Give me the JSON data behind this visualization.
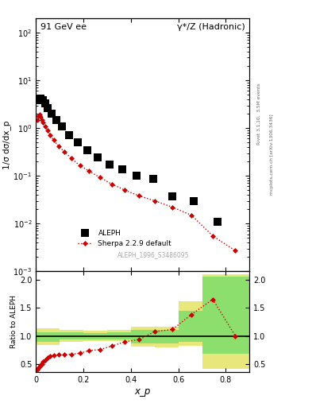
{
  "title_left": "91 GeV ee",
  "title_right": "γ*/Z (Hadronic)",
  "ylabel_main": "1/σ dσ/dx_p",
  "ylabel_ratio": "Ratio to ALEPH",
  "xlabel": "x_p",
  "watermark": "ALEPH_1996_S3486095",
  "right_label": "Rivet 3.1.10,  3.5M events",
  "right_label2": "mcplots.cern.ch [arXiv:1306.3436]",
  "aleph_x": [
    0.012,
    0.02,
    0.028,
    0.038,
    0.05,
    0.065,
    0.085,
    0.11,
    0.14,
    0.175,
    0.215,
    0.26,
    0.31,
    0.365,
    0.425,
    0.495,
    0.575,
    0.665,
    0.765
  ],
  "aleph_y": [
    3.8,
    4.2,
    3.9,
    3.3,
    2.6,
    2.0,
    1.5,
    1.1,
    0.72,
    0.5,
    0.35,
    0.24,
    0.17,
    0.135,
    0.1,
    0.085,
    0.037,
    0.03,
    0.011
  ],
  "aleph_color": "#000000",
  "aleph_marker": "s",
  "aleph_markersize": 5,
  "aleph_label": "ALEPH",
  "sherpa_x": [
    0.005,
    0.01,
    0.015,
    0.02,
    0.025,
    0.03,
    0.038,
    0.048,
    0.06,
    0.075,
    0.095,
    0.12,
    0.15,
    0.185,
    0.225,
    0.27,
    0.32,
    0.375,
    0.435,
    0.5,
    0.575,
    0.655,
    0.745,
    0.84
  ],
  "sherpa_y": [
    1.5,
    1.8,
    1.9,
    1.7,
    1.5,
    1.3,
    1.1,
    0.9,
    0.72,
    0.56,
    0.42,
    0.32,
    0.23,
    0.165,
    0.125,
    0.092,
    0.067,
    0.05,
    0.038,
    0.03,
    0.022,
    0.015,
    0.0055,
    0.0027
  ],
  "sherpa_color": "#cc0000",
  "sherpa_marker": "D",
  "sherpa_markersize": 3.5,
  "sherpa_label": "Sherpa 2.2.9 default",
  "ratio_x": [
    0.005,
    0.01,
    0.015,
    0.02,
    0.025,
    0.03,
    0.038,
    0.048,
    0.06,
    0.075,
    0.095,
    0.12,
    0.15,
    0.185,
    0.225,
    0.27,
    0.32,
    0.375,
    0.435,
    0.5,
    0.575,
    0.655,
    0.745,
    0.84
  ],
  "ratio_y": [
    0.395,
    0.43,
    0.46,
    0.48,
    0.5,
    0.535,
    0.57,
    0.615,
    0.635,
    0.655,
    0.665,
    0.67,
    0.675,
    0.69,
    0.74,
    0.755,
    0.82,
    0.895,
    0.935,
    1.075,
    1.115,
    1.38,
    1.65,
    1.0
  ],
  "band_edges": [
    0.0,
    0.1,
    0.2,
    0.3,
    0.4,
    0.5,
    0.6,
    0.7,
    0.9
  ],
  "band_green_low": [
    0.9,
    0.93,
    0.94,
    0.94,
    0.87,
    0.87,
    0.9,
    0.68,
    0.68
  ],
  "band_green_high": [
    1.07,
    1.06,
    1.055,
    1.06,
    1.1,
    1.1,
    1.45,
    2.05,
    2.05
  ],
  "band_yellow_low": [
    0.84,
    0.89,
    0.91,
    0.91,
    0.81,
    0.79,
    0.83,
    0.42,
    0.42
  ],
  "band_yellow_high": [
    1.13,
    1.11,
    1.09,
    1.11,
    1.17,
    1.17,
    1.62,
    2.1,
    2.1
  ],
  "ylim_main": [
    0.001,
    200
  ],
  "ylim_ratio": [
    0.35,
    2.15
  ],
  "xlim": [
    0.0,
    0.9
  ],
  "ratio_yticks": [
    0.5,
    1.0,
    1.5,
    2.0
  ],
  "green_color": "#66dd66",
  "yellow_color": "#dddd44",
  "green_alpha": 0.7,
  "yellow_alpha": 0.7
}
